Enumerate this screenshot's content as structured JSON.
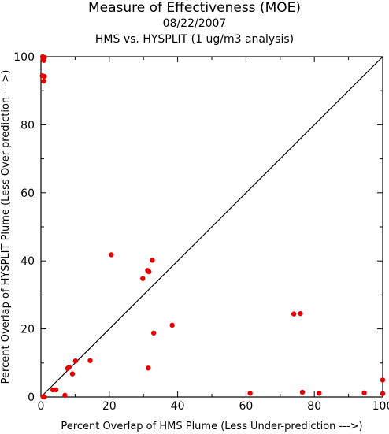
{
  "chart_data": {
    "type": "scatter",
    "title": "Measure of Effectiveness (MOE)",
    "subtitle_date": "08/22/2007",
    "subtitle": "HMS vs. HYSPLIT  (1 ug/m3 analysis)",
    "xlabel": "Percent Overlap of HMS Plume (Less Under-prediction --->)",
    "ylabel": "Percent Overlap of HYSPLIT Plume (Less Over-prediction --->)",
    "xlim": [
      0,
      100
    ],
    "ylim": [
      0,
      100
    ],
    "xticks": [
      "0",
      "20",
      "40",
      "60",
      "80",
      "100"
    ],
    "yticks": [
      "0",
      "20",
      "40",
      "60",
      "80",
      "100"
    ],
    "reference_line": "diagonal y = x",
    "marker_color": "#e60000",
    "grid": false,
    "points": [
      {
        "x": 0.5,
        "y": 100.0
      },
      {
        "x": 1.0,
        "y": 99.8
      },
      {
        "x": 0.6,
        "y": 99.3
      },
      {
        "x": 0.8,
        "y": 98.9
      },
      {
        "x": 0.4,
        "y": 94.4
      },
      {
        "x": 1.0,
        "y": 94.2
      },
      {
        "x": 0.8,
        "y": 92.8
      },
      {
        "x": 20.6,
        "y": 41.8
      },
      {
        "x": 32.6,
        "y": 40.2
      },
      {
        "x": 31.2,
        "y": 37.2
      },
      {
        "x": 31.6,
        "y": 36.8
      },
      {
        "x": 29.8,
        "y": 34.8
      },
      {
        "x": 38.4,
        "y": 21.1
      },
      {
        "x": 33.0,
        "y": 18.8
      },
      {
        "x": 14.4,
        "y": 10.7
      },
      {
        "x": 10.1,
        "y": 10.6
      },
      {
        "x": 8.2,
        "y": 8.7
      },
      {
        "x": 7.8,
        "y": 8.4
      },
      {
        "x": 9.2,
        "y": 6.8
      },
      {
        "x": 31.4,
        "y": 8.5
      },
      {
        "x": 3.5,
        "y": 2.1
      },
      {
        "x": 4.4,
        "y": 2.1
      },
      {
        "x": 7.0,
        "y": 0.5
      },
      {
        "x": 0.7,
        "y": 0.1
      },
      {
        "x": 1.0,
        "y": 0.0
      },
      {
        "x": 74.0,
        "y": 24.4
      },
      {
        "x": 75.9,
        "y": 24.5
      },
      {
        "x": 61.2,
        "y": 1.1
      },
      {
        "x": 76.5,
        "y": 1.4
      },
      {
        "x": 81.4,
        "y": 1.1
      },
      {
        "x": 94.6,
        "y": 1.2
      },
      {
        "x": 100.0,
        "y": 5.0
      },
      {
        "x": 100.0,
        "y": 1.0
      }
    ]
  }
}
